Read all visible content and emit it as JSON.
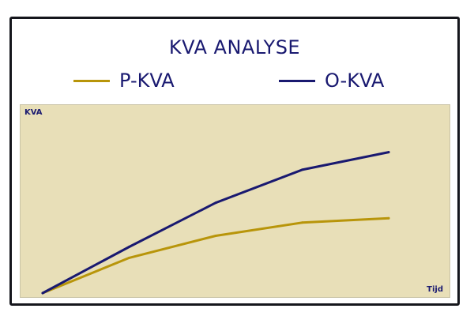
{
  "chart_data": {
    "type": "line",
    "title": "KVA ANALYSE",
    "ylabel": "KVA",
    "xlabel": "Tijd",
    "x": [
      0,
      1,
      2,
      3,
      4
    ],
    "series": [
      {
        "name": "P-KVA",
        "color": "#b8950a",
        "values": [
          0,
          32,
          52,
          64,
          68
        ]
      },
      {
        "name": "O-KVA",
        "color": "#191970",
        "values": [
          0,
          42,
          82,
          112,
          128
        ]
      }
    ],
    "ylim": [
      0,
      165
    ],
    "grid": false,
    "legend_position": "top"
  }
}
